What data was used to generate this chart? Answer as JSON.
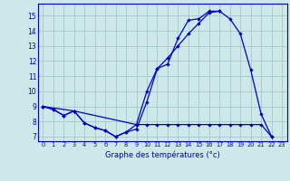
{
  "xlabel": "Graphe des températures (°c)",
  "background_color": "#cce8e8",
  "grid_color": "#aacccc",
  "line_color": "#0000cc",
  "hours": [
    0,
    1,
    2,
    3,
    4,
    5,
    6,
    7,
    8,
    9,
    10,
    11,
    12,
    13,
    14,
    15,
    16,
    17,
    18,
    19,
    20,
    21,
    22,
    23
  ],
  "line_top": [
    9.0,
    8.8,
    8.4,
    8.7,
    7.9,
    7.6,
    7.4,
    7.0,
    7.3,
    7.5,
    9.3,
    11.5,
    11.8,
    13.5,
    14.7,
    14.8,
    15.3,
    15.3,
    null,
    null,
    null,
    null,
    null,
    null
  ],
  "line_mid": [
    9.0,
    null,
    null,
    8.7,
    null,
    null,
    null,
    null,
    null,
    7.8,
    10.0,
    11.5,
    12.2,
    13.0,
    13.8,
    14.5,
    15.2,
    15.3,
    14.8,
    13.8,
    11.4,
    8.5,
    7.0,
    null
  ],
  "line_bot": [
    9.0,
    8.8,
    8.4,
    8.7,
    7.9,
    7.6,
    7.4,
    7.0,
    7.3,
    7.8,
    7.8,
    7.8,
    7.8,
    7.8,
    7.8,
    7.8,
    7.8,
    7.8,
    7.8,
    7.8,
    7.8,
    7.8,
    7.0,
    null
  ],
  "ylim": [
    6.7,
    15.8
  ],
  "yticks": [
    7,
    8,
    9,
    10,
    11,
    12,
    13,
    14,
    15
  ],
  "xlim": [
    -0.5,
    23.5
  ],
  "xticks": [
    0,
    1,
    2,
    3,
    4,
    5,
    6,
    7,
    8,
    9,
    10,
    11,
    12,
    13,
    14,
    15,
    16,
    17,
    18,
    19,
    20,
    21,
    22,
    23
  ]
}
